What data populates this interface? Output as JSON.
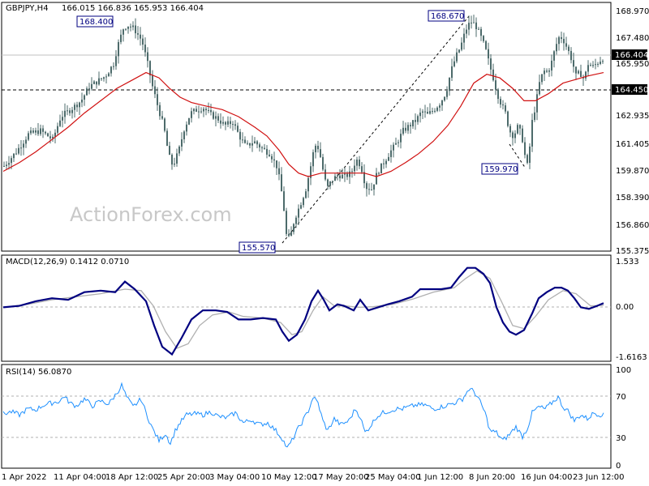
{
  "chart_data": [
    {
      "type": "candlestick",
      "title": "GBPJPY,H4",
      "ohlc": "166.015 166.836 165.953 166.404",
      "price_ticks": [
        "168.970",
        "167.480",
        "165.950",
        "164.450",
        "162.935",
        "161.405",
        "159.870",
        "158.390",
        "156.860",
        "155.375"
      ],
      "ylim": [
        155.375,
        168.97
      ],
      "x_labels": [
        "1 Apr 2022",
        "11 Apr 04:00",
        "18 Apr 12:00",
        "25 Apr 20:00",
        "3 May 04:00",
        "10 May 12:00",
        "17 May 20:00",
        "25 May 04:00",
        "1 Jun 12:00",
        "8 Jun 20:00",
        "16 Jun 04:00",
        "23 Jun 12:00"
      ],
      "current_price": "166.404",
      "level_line": "164.450",
      "annotations": [
        {
          "label": "168.400",
          "value": 168.4
        },
        {
          "label": "155.570",
          "value": 155.57
        },
        {
          "label": "168.670",
          "value": 168.67
        },
        {
          "label": "159.970",
          "value": 159.97
        }
      ],
      "close_path": [
        [
          0,
          160.2
        ],
        [
          15,
          161.0
        ],
        [
          30,
          162.0
        ],
        [
          45,
          162.2
        ],
        [
          60,
          161.7
        ],
        [
          70,
          163.0
        ],
        [
          82,
          163.4
        ],
        [
          95,
          163.9
        ],
        [
          105,
          164.7
        ],
        [
          115,
          165.0
        ],
        [
          125,
          165.3
        ],
        [
          135,
          166.0
        ],
        [
          140,
          167.0
        ],
        [
          147,
          168.0
        ],
        [
          152,
          168.2
        ],
        [
          160,
          168.0
        ],
        [
          170,
          167.3
        ],
        [
          178,
          165.8
        ],
        [
          183,
          164.7
        ],
        [
          190,
          163.5
        ],
        [
          197,
          162.4
        ],
        [
          203,
          160.8
        ],
        [
          208,
          160.2
        ],
        [
          215,
          161.0
        ],
        [
          222,
          162.3
        ],
        [
          230,
          163.2
        ],
        [
          238,
          163.4
        ],
        [
          246,
          163.5
        ],
        [
          255,
          163.1
        ],
        [
          263,
          162.9
        ],
        [
          272,
          162.5
        ],
        [
          282,
          162.7
        ],
        [
          290,
          161.9
        ],
        [
          298,
          161.3
        ],
        [
          308,
          161.6
        ],
        [
          318,
          161.2
        ],
        [
          328,
          160.9
        ],
        [
          337,
          160.1
        ],
        [
          344,
          158.2
        ],
        [
          348,
          156.3
        ],
        [
          352,
          156.0
        ],
        [
          358,
          157.2
        ],
        [
          365,
          158.0
        ],
        [
          372,
          158.9
        ],
        [
          378,
          160.2
        ],
        [
          383,
          161.4
        ],
        [
          388,
          161.2
        ],
        [
          393,
          160.0
        ],
        [
          398,
          158.9
        ],
        [
          404,
          159.4
        ],
        [
          412,
          159.7
        ],
        [
          420,
          159.6
        ],
        [
          428,
          159.8
        ],
        [
          434,
          160.6
        ],
        [
          440,
          160.2
        ],
        [
          446,
          159.0
        ],
        [
          453,
          158.9
        ],
        [
          460,
          159.8
        ],
        [
          468,
          160.4
        ],
        [
          476,
          161.0
        ],
        [
          484,
          161.5
        ],
        [
          492,
          162.2
        ],
        [
          500,
          162.5
        ],
        [
          508,
          162.8
        ],
        [
          515,
          163.3
        ],
        [
          522,
          163.1
        ],
        [
          530,
          163.4
        ],
        [
          538,
          163.8
        ],
        [
          545,
          164.4
        ],
        [
          551,
          165.6
        ],
        [
          557,
          166.4
        ],
        [
          563,
          167.0
        ],
        [
          569,
          167.9
        ],
        [
          575,
          168.4
        ],
        [
          581,
          168.2
        ],
        [
          587,
          167.6
        ],
        [
          593,
          166.9
        ],
        [
          598,
          166.0
        ],
        [
          603,
          165.2
        ],
        [
          608,
          164.3
        ],
        [
          613,
          163.7
        ],
        [
          618,
          163.2
        ],
        [
          623,
          162.2
        ],
        [
          628,
          161.9
        ],
        [
          633,
          162.4
        ],
        [
          638,
          162.0
        ],
        [
          643,
          160.5
        ],
        [
          646,
          160.1
        ],
        [
          650,
          162.5
        ],
        [
          655,
          163.6
        ],
        [
          660,
          164.9
        ],
        [
          665,
          165.6
        ],
        [
          670,
          165.5
        ],
        [
          675,
          166.1
        ],
        [
          680,
          167.0
        ],
        [
          685,
          167.6
        ],
        [
          690,
          167.3
        ],
        [
          695,
          166.8
        ],
        [
          700,
          166.2
        ],
        [
          705,
          165.3
        ],
        [
          710,
          165.5
        ],
        [
          715,
          165.1
        ],
        [
          720,
          166.0
        ],
        [
          725,
          165.8
        ],
        [
          730,
          166.0
        ],
        [
          735,
          166.2
        ],
        [
          740,
          166.4
        ]
      ],
      "ma": [
        [
          0,
          159.9
        ],
        [
          20,
          160.4
        ],
        [
          40,
          161.0
        ],
        [
          60,
          161.7
        ],
        [
          80,
          162.4
        ],
        [
          100,
          163.2
        ],
        [
          120,
          163.9
        ],
        [
          140,
          164.6
        ],
        [
          160,
          165.1
        ],
        [
          176,
          165.5
        ],
        [
          192,
          165.2
        ],
        [
          205,
          164.6
        ],
        [
          218,
          164.1
        ],
        [
          232,
          163.8
        ],
        [
          250,
          163.6
        ],
        [
          270,
          163.4
        ],
        [
          290,
          163.0
        ],
        [
          310,
          162.4
        ],
        [
          325,
          161.9
        ],
        [
          340,
          161.1
        ],
        [
          352,
          160.3
        ],
        [
          364,
          159.8
        ],
        [
          376,
          159.6
        ],
        [
          392,
          159.8
        ],
        [
          410,
          159.8
        ],
        [
          428,
          159.8
        ],
        [
          445,
          159.8
        ],
        [
          460,
          159.6
        ],
        [
          478,
          159.9
        ],
        [
          496,
          160.4
        ],
        [
          512,
          160.9
        ],
        [
          530,
          161.6
        ],
        [
          548,
          162.5
        ],
        [
          564,
          163.6
        ],
        [
          580,
          164.9
        ],
        [
          596,
          165.4
        ],
        [
          612,
          165.2
        ],
        [
          628,
          164.6
        ],
        [
          642,
          163.9
        ],
        [
          656,
          163.9
        ],
        [
          672,
          164.3
        ],
        [
          690,
          164.9
        ],
        [
          705,
          165.1
        ],
        [
          720,
          165.3
        ],
        [
          740,
          165.5
        ]
      ]
    },
    {
      "type": "line",
      "title": "MACD(12,26,9) 0.1412 0.0710",
      "ticks": [
        "1.533",
        "0.00",
        "-1.6163"
      ],
      "ylim": [
        -1.6163,
        1.533
      ],
      "macd": [
        [
          0,
          0.0
        ],
        [
          20,
          0.05
        ],
        [
          40,
          0.2
        ],
        [
          60,
          0.3
        ],
        [
          80,
          0.25
        ],
        [
          100,
          0.5
        ],
        [
          120,
          0.55
        ],
        [
          138,
          0.5
        ],
        [
          150,
          0.85
        ],
        [
          162,
          0.6
        ],
        [
          176,
          0.2
        ],
        [
          186,
          -0.6
        ],
        [
          196,
          -1.3
        ],
        [
          208,
          -1.55
        ],
        [
          220,
          -1.0
        ],
        [
          232,
          -0.4
        ],
        [
          246,
          -0.1
        ],
        [
          262,
          -0.1
        ],
        [
          276,
          -0.15
        ],
        [
          290,
          -0.4
        ],
        [
          305,
          -0.4
        ],
        [
          320,
          -0.35
        ],
        [
          336,
          -0.4
        ],
        [
          344,
          -0.8
        ],
        [
          352,
          -1.1
        ],
        [
          362,
          -0.9
        ],
        [
          372,
          -0.4
        ],
        [
          380,
          0.2
        ],
        [
          388,
          0.55
        ],
        [
          395,
          0.25
        ],
        [
          402,
          -0.1
        ],
        [
          412,
          0.1
        ],
        [
          420,
          0.05
        ],
        [
          432,
          -0.1
        ],
        [
          440,
          0.25
        ],
        [
          450,
          -0.1
        ],
        [
          462,
          0.0
        ],
        [
          474,
          0.1
        ],
        [
          488,
          0.2
        ],
        [
          504,
          0.35
        ],
        [
          514,
          0.6
        ],
        [
          526,
          0.6
        ],
        [
          540,
          0.6
        ],
        [
          552,
          0.65
        ],
        [
          562,
          1.0
        ],
        [
          572,
          1.3
        ],
        [
          582,
          1.3
        ],
        [
          592,
          1.1
        ],
        [
          600,
          0.8
        ],
        [
          608,
          0.0
        ],
        [
          616,
          -0.5
        ],
        [
          624,
          -0.8
        ],
        [
          632,
          -0.9
        ],
        [
          642,
          -0.75
        ],
        [
          652,
          -0.2
        ],
        [
          660,
          0.3
        ],
        [
          670,
          0.5
        ],
        [
          680,
          0.65
        ],
        [
          688,
          0.65
        ],
        [
          696,
          0.55
        ],
        [
          704,
          0.3
        ],
        [
          712,
          0.0
        ],
        [
          722,
          -0.05
        ],
        [
          732,
          0.05
        ],
        [
          740,
          0.14
        ]
      ],
      "signal": [
        [
          0,
          0.0
        ],
        [
          30,
          0.1
        ],
        [
          60,
          0.25
        ],
        [
          90,
          0.35
        ],
        [
          120,
          0.45
        ],
        [
          150,
          0.6
        ],
        [
          170,
          0.55
        ],
        [
          185,
          0.05
        ],
        [
          200,
          -0.8
        ],
        [
          214,
          -1.35
        ],
        [
          228,
          -1.2
        ],
        [
          242,
          -0.6
        ],
        [
          258,
          -0.25
        ],
        [
          278,
          -0.15
        ],
        [
          296,
          -0.3
        ],
        [
          320,
          -0.35
        ],
        [
          342,
          -0.5
        ],
        [
          356,
          -0.9
        ],
        [
          368,
          -0.8
        ],
        [
          382,
          -0.1
        ],
        [
          394,
          0.35
        ],
        [
          408,
          0.05
        ],
        [
          422,
          0.05
        ],
        [
          438,
          0.0
        ],
        [
          456,
          0.02
        ],
        [
          480,
          0.1
        ],
        [
          506,
          0.28
        ],
        [
          530,
          0.5
        ],
        [
          556,
          0.65
        ],
        [
          570,
          0.95
        ],
        [
          584,
          1.2
        ],
        [
          600,
          0.95
        ],
        [
          614,
          0.2
        ],
        [
          628,
          -0.6
        ],
        [
          642,
          -0.7
        ],
        [
          656,
          -0.3
        ],
        [
          672,
          0.25
        ],
        [
          690,
          0.55
        ],
        [
          706,
          0.45
        ],
        [
          724,
          0.05
        ],
        [
          740,
          0.07
        ]
      ]
    },
    {
      "type": "line",
      "title": "RSI(14) 56.0870",
      "ticks": [
        "100",
        "70",
        "30",
        "0"
      ],
      "ylim": [
        0,
        100
      ],
      "levels": [
        70,
        30
      ],
      "rsi": [
        [
          0,
          55
        ],
        [
          10,
          57
        ],
        [
          20,
          54
        ],
        [
          30,
          60
        ],
        [
          40,
          59
        ],
        [
          50,
          64
        ],
        [
          60,
          66
        ],
        [
          70,
          68
        ],
        [
          75,
          73
        ],
        [
          82,
          66
        ],
        [
          90,
          63
        ],
        [
          100,
          70
        ],
        [
          110,
          63
        ],
        [
          120,
          68
        ],
        [
          130,
          65
        ],
        [
          140,
          76
        ],
        [
          146,
          84
        ],
        [
          152,
          72
        ],
        [
          160,
          62
        ],
        [
          170,
          70
        ],
        [
          176,
          56
        ],
        [
          184,
          40
        ],
        [
          192,
          28
        ],
        [
          200,
          35
        ],
        [
          206,
          25
        ],
        [
          212,
          38
        ],
        [
          218,
          46
        ],
        [
          226,
          54
        ],
        [
          236,
          55
        ],
        [
          246,
          54
        ],
        [
          256,
          57
        ],
        [
          266,
          52
        ],
        [
          276,
          51
        ],
        [
          286,
          56
        ],
        [
          296,
          46
        ],
        [
          306,
          49
        ],
        [
          316,
          44
        ],
        [
          326,
          46
        ],
        [
          336,
          38
        ],
        [
          344,
          30
        ],
        [
          350,
          20
        ],
        [
          356,
          28
        ],
        [
          362,
          38
        ],
        [
          368,
          46
        ],
        [
          376,
          58
        ],
        [
          382,
          72
        ],
        [
          388,
          66
        ],
        [
          394,
          48
        ],
        [
          400,
          38
        ],
        [
          408,
          50
        ],
        [
          416,
          44
        ],
        [
          426,
          48
        ],
        [
          434,
          60
        ],
        [
          440,
          52
        ],
        [
          446,
          36
        ],
        [
          452,
          42
        ],
        [
          460,
          52
        ],
        [
          468,
          56
        ],
        [
          476,
          58
        ],
        [
          484,
          60
        ],
        [
          492,
          60
        ],
        [
          500,
          62
        ],
        [
          510,
          64
        ],
        [
          520,
          64
        ],
        [
          530,
          60
        ],
        [
          540,
          62
        ],
        [
          548,
          64
        ],
        [
          556,
          66
        ],
        [
          566,
          70
        ],
        [
          574,
          80
        ],
        [
          580,
          78
        ],
        [
          586,
          70
        ],
        [
          594,
          56
        ],
        [
          600,
          38
        ],
        [
          608,
          36
        ],
        [
          616,
          28
        ],
        [
          624,
          34
        ],
        [
          632,
          42
        ],
        [
          640,
          32
        ],
        [
          646,
          40
        ],
        [
          652,
          56
        ],
        [
          660,
          62
        ],
        [
          668,
          60
        ],
        [
          676,
          66
        ],
        [
          684,
          72
        ],
        [
          690,
          62
        ],
        [
          696,
          58
        ],
        [
          704,
          48
        ],
        [
          712,
          54
        ],
        [
          720,
          50
        ],
        [
          728,
          56
        ],
        [
          736,
          54
        ],
        [
          740,
          56
        ]
      ]
    }
  ],
  "watermark": "ActionForex.com"
}
